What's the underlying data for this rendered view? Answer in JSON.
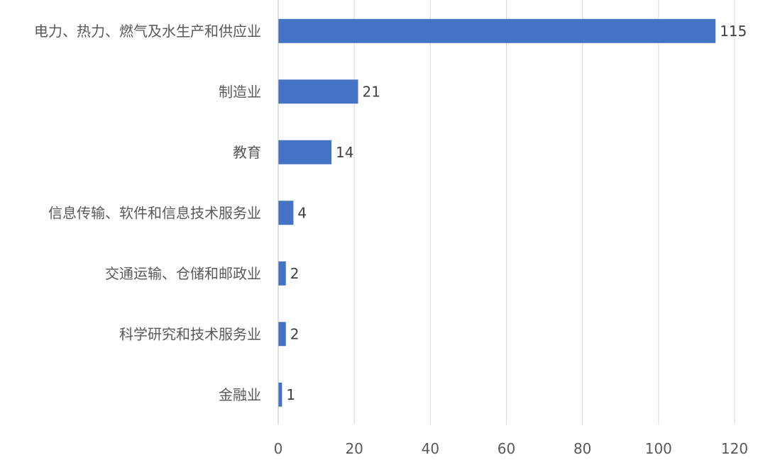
{
  "chart_data": {
    "type": "bar",
    "orientation": "horizontal",
    "title": "",
    "xlabel": "",
    "ylabel": "",
    "categories": [
      "电力、热力、燃气及水生产和供应业",
      "制造业",
      "教育",
      "信息传输、软件和信息技术服务业",
      "交通运输、仓储和邮政业",
      "科学研究和技术服务业",
      "金融业"
    ],
    "values": [
      115,
      21,
      14,
      4,
      2,
      2,
      1
    ],
    "xlim": [
      0,
      120
    ],
    "xticks": [
      0,
      20,
      40,
      60,
      80,
      100,
      120
    ],
    "grid": "vertical",
    "legend": "none",
    "bar_color": "#4472C4"
  }
}
